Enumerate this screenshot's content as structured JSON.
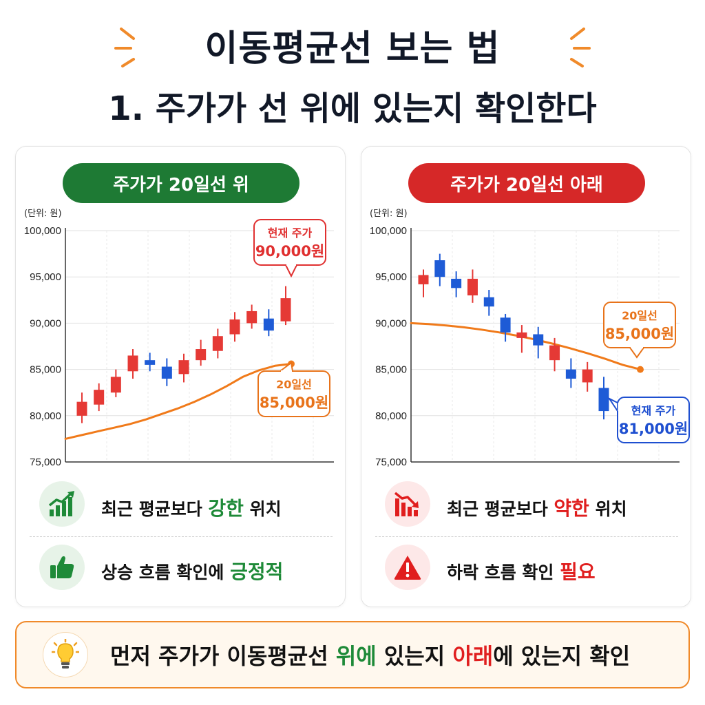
{
  "title": {
    "line1": "이동평균선 보는 법",
    "line2": "1. 주가가 선 위에 있는지 확인한다"
  },
  "colors": {
    "green": "#1e7a34",
    "red": "#d62828",
    "up_candle": "#e53935",
    "down_candle": "#1e5bd6",
    "ma_line": "#f07a1a",
    "callout_red": "#e03030",
    "callout_orange": "#e8731a",
    "callout_blue": "#1e4fd0"
  },
  "left_panel": {
    "header": "주가가 20일선 위",
    "unit": "(단위: 원)",
    "row1": {
      "pre": "최근 평균보다 ",
      "highlight": "강한",
      "post": " 위치"
    },
    "row2": {
      "pre": "상승 흐름 확인에 ",
      "highlight": "긍정적",
      "post": ""
    },
    "icons": [
      "chart-up-icon",
      "thumbs-up-icon"
    ]
  },
  "right_panel": {
    "header": "주가가 20일선 아래",
    "unit": "(단위: 원)",
    "row1": {
      "pre": "최근 평균보다 ",
      "highlight": "약한",
      "post": " 위치"
    },
    "row2": {
      "pre": "하락 흐름 확인 ",
      "highlight": "필요",
      "post": ""
    },
    "icons": [
      "chart-down-icon",
      "warning-icon"
    ]
  },
  "banner": {
    "icon": "lightbulb-icon",
    "part1": "먼저 주가가 이동평균선 ",
    "part2": "위에",
    "part3": " 있는지 ",
    "part4": "아래",
    "part5": "에 있는지 확인"
  },
  "chart_data": [
    {
      "type": "candlestick",
      "y_ticks": [
        "100,000",
        "95,000",
        "90,000",
        "85,000",
        "80,000",
        "75,000"
      ],
      "ylim": [
        75000,
        100000
      ],
      "grid": true,
      "candles": [
        {
          "o": 80000,
          "c": 81500,
          "h": 82500,
          "l": 79200
        },
        {
          "o": 81200,
          "c": 82800,
          "h": 83500,
          "l": 80500
        },
        {
          "o": 82500,
          "c": 84200,
          "h": 85000,
          "l": 82000
        },
        {
          "o": 84800,
          "c": 86500,
          "h": 87200,
          "l": 84000
        },
        {
          "o": 86000,
          "c": 85500,
          "h": 86800,
          "l": 84800
        },
        {
          "o": 85300,
          "c": 84000,
          "h": 86200,
          "l": 83200
        },
        {
          "o": 84500,
          "c": 86000,
          "h": 86700,
          "l": 83600
        },
        {
          "o": 86000,
          "c": 87200,
          "h": 88200,
          "l": 85400
        },
        {
          "o": 87000,
          "c": 88600,
          "h": 89400,
          "l": 86200
        },
        {
          "o": 88800,
          "c": 90400,
          "h": 91200,
          "l": 88000
        },
        {
          "o": 90000,
          "c": 91300,
          "h": 92000,
          "l": 89400
        },
        {
          "o": 90500,
          "c": 89200,
          "h": 91500,
          "l": 88600
        },
        {
          "o": 90200,
          "c": 92700,
          "h": 94000,
          "l": 89800
        }
      ],
      "ma20": [
        77500,
        77900,
        78300,
        78700,
        79100,
        79600,
        80200,
        80800,
        81500,
        82300,
        83200,
        84200,
        84900,
        85400,
        85600
      ],
      "callouts": [
        {
          "label": "현재 주가",
          "value": "90,000원",
          "kind": "price"
        },
        {
          "label": "20일선",
          "value": "85,000원",
          "kind": "ma"
        }
      ]
    },
    {
      "type": "candlestick",
      "y_ticks": [
        "100,000",
        "95,000",
        "90,000",
        "85,000",
        "80,000",
        "75,000"
      ],
      "ylim": [
        75000,
        100000
      ],
      "grid": true,
      "candles": [
        {
          "o": 94200,
          "c": 95200,
          "h": 95800,
          "l": 92800
        },
        {
          "o": 96800,
          "c": 95000,
          "h": 97500,
          "l": 94000
        },
        {
          "o": 94800,
          "c": 93800,
          "h": 95600,
          "l": 92800
        },
        {
          "o": 93000,
          "c": 94800,
          "h": 95800,
          "l": 92200
        },
        {
          "o": 92800,
          "c": 91800,
          "h": 93600,
          "l": 90800
        },
        {
          "o": 90600,
          "c": 89000,
          "h": 91000,
          "l": 88000
        },
        {
          "o": 88400,
          "c": 89000,
          "h": 89800,
          "l": 86800
        },
        {
          "o": 88800,
          "c": 87600,
          "h": 89600,
          "l": 86200
        },
        {
          "o": 86000,
          "c": 87600,
          "h": 88400,
          "l": 84800
        },
        {
          "o": 85000,
          "c": 84000,
          "h": 86200,
          "l": 83000
        },
        {
          "o": 83600,
          "c": 85000,
          "h": 85800,
          "l": 82600
        },
        {
          "o": 83000,
          "c": 80500,
          "h": 84200,
          "l": 79600
        }
      ],
      "ma20": [
        90000,
        89900,
        89750,
        89550,
        89300,
        89000,
        88650,
        88250,
        87800,
        87300,
        86750,
        86150,
        85500,
        85000
      ],
      "callouts": [
        {
          "label": "20일선",
          "value": "85,000원",
          "kind": "ma"
        },
        {
          "label": "현재 주가",
          "value": "81,000원",
          "kind": "price"
        }
      ]
    }
  ]
}
